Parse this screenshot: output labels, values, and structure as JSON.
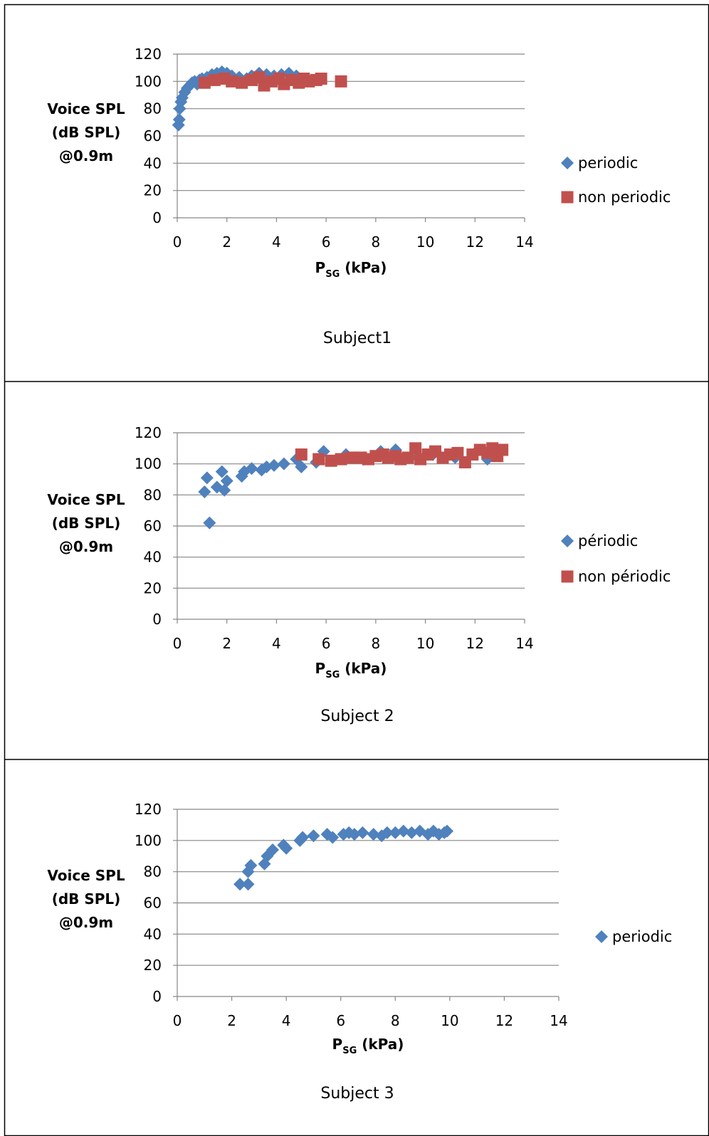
{
  "colors": {
    "periodic": "#4f81bd",
    "non_periodic": "#c0504d",
    "grid": "#868686",
    "border": "#000000"
  },
  "chart_data": [
    {
      "type": "scatter",
      "subject": "Subject1",
      "ylabel": [
        "Voice SPL",
        "(dB SPL)",
        "@0.9m"
      ],
      "xlabel_main": "P",
      "xlabel_sub": "SG",
      "xlabel_unit": " (kPa)",
      "xlim": [
        0,
        14
      ],
      "ylim": [
        0,
        120
      ],
      "xticks": [
        "0",
        "2",
        "4",
        "6",
        "8",
        "10",
        "12",
        "14"
      ],
      "yticks": [
        "0",
        "20",
        "40",
        "60",
        "80",
        "100",
        "120"
      ],
      "grid": true,
      "legend_position": "right",
      "series": [
        {
          "name": "periodic",
          "marker": "diamond",
          "color": "#4f81bd",
          "points": [
            [
              0.05,
              68
            ],
            [
              0.08,
              72
            ],
            [
              0.1,
              80
            ],
            [
              0.15,
              85
            ],
            [
              0.2,
              88
            ],
            [
              0.3,
              92
            ],
            [
              0.4,
              95
            ],
            [
              0.5,
              97
            ],
            [
              0.6,
              99
            ],
            [
              0.7,
              100
            ],
            [
              0.8,
              98
            ],
            [
              0.9,
              101
            ],
            [
              1.0,
              102
            ],
            [
              1.2,
              103
            ],
            [
              1.4,
              105
            ],
            [
              1.6,
              106
            ],
            [
              1.8,
              107
            ],
            [
              2.0,
              106
            ],
            [
              2.2,
              104
            ],
            [
              2.5,
              103
            ],
            [
              2.8,
              102
            ],
            [
              3.0,
              104
            ],
            [
              3.3,
              106
            ],
            [
              3.6,
              105
            ],
            [
              3.9,
              104
            ],
            [
              4.2,
              105
            ],
            [
              4.5,
              106
            ],
            [
              4.8,
              104
            ]
          ]
        },
        {
          "name": "non periodic",
          "marker": "square",
          "color": "#c0504d",
          "points": [
            [
              1.1,
              99
            ],
            [
              1.5,
              101
            ],
            [
              1.9,
              102
            ],
            [
              2.2,
              100
            ],
            [
              2.6,
              99
            ],
            [
              3.0,
              101
            ],
            [
              3.3,
              103
            ],
            [
              3.5,
              97
            ],
            [
              3.8,
              100
            ],
            [
              4.1,
              102
            ],
            [
              4.3,
              98
            ],
            [
              4.6,
              101
            ],
            [
              4.9,
              99
            ],
            [
              5.1,
              102
            ],
            [
              5.3,
              100
            ],
            [
              5.6,
              101
            ],
            [
              5.8,
              102
            ],
            [
              6.6,
              100
            ]
          ]
        }
      ]
    },
    {
      "type": "scatter",
      "subject": "Subject 2",
      "ylabel": [
        "Voice SPL",
        "(dB SPL)",
        "@0.9m"
      ],
      "xlabel_main": "P",
      "xlabel_sub": "SG",
      "xlabel_unit": " (kPa)",
      "xlim": [
        0,
        14
      ],
      "ylim": [
        0,
        120
      ],
      "xticks": [
        "0",
        "2",
        "4",
        "6",
        "8",
        "10",
        "12",
        "14"
      ],
      "yticks": [
        "0",
        "20",
        "40",
        "60",
        "80",
        "100",
        "120"
      ],
      "grid": true,
      "legend_position": "right",
      "series": [
        {
          "name": "périodic",
          "marker": "diamond",
          "color": "#4f81bd",
          "points": [
            [
              1.1,
              82
            ],
            [
              1.2,
              91
            ],
            [
              1.3,
              62
            ],
            [
              1.6,
              85
            ],
            [
              1.8,
              95
            ],
            [
              1.9,
              83
            ],
            [
              2.0,
              89
            ],
            [
              2.6,
              92
            ],
            [
              2.7,
              95
            ],
            [
              3.0,
              97
            ],
            [
              3.4,
              96
            ],
            [
              3.6,
              98
            ],
            [
              3.9,
              99
            ],
            [
              4.3,
              100
            ],
            [
              4.8,
              103
            ],
            [
              5.0,
              98
            ],
            [
              5.6,
              101
            ],
            [
              5.9,
              108
            ],
            [
              6.8,
              106
            ],
            [
              7.5,
              103
            ],
            [
              8.2,
              108
            ],
            [
              8.8,
              109
            ],
            [
              9.4,
              104
            ],
            [
              10.3,
              106
            ],
            [
              11.2,
              104
            ],
            [
              12.0,
              107
            ],
            [
              12.5,
              103
            ]
          ]
        },
        {
          "name": "non périodic",
          "marker": "square",
          "color": "#c0504d",
          "points": [
            [
              5.0,
              106
            ],
            [
              5.7,
              103
            ],
            [
              6.2,
              102
            ],
            [
              6.6,
              103
            ],
            [
              7.0,
              104
            ],
            [
              7.4,
              104
            ],
            [
              7.7,
              103
            ],
            [
              8.0,
              105
            ],
            [
              8.3,
              106
            ],
            [
              8.5,
              104
            ],
            [
              8.8,
              105
            ],
            [
              9.0,
              103
            ],
            [
              9.3,
              104
            ],
            [
              9.6,
              110
            ],
            [
              9.8,
              103
            ],
            [
              10.1,
              106
            ],
            [
              10.4,
              108
            ],
            [
              10.7,
              104
            ],
            [
              11.0,
              106
            ],
            [
              11.3,
              107
            ],
            [
              11.6,
              101
            ],
            [
              11.9,
              106
            ],
            [
              12.2,
              109
            ],
            [
              12.5,
              107
            ],
            [
              12.7,
              110
            ],
            [
              12.9,
              105
            ],
            [
              13.1,
              109
            ]
          ]
        }
      ]
    },
    {
      "type": "scatter",
      "subject": "Subject 3",
      "ylabel": [
        "Voice SPL",
        "(dB SPL)",
        "@0.9m"
      ],
      "xlabel_main": "P",
      "xlabel_sub": "SG",
      "xlabel_unit": " (kPa)",
      "xlim": [
        0,
        14
      ],
      "ylim": [
        0,
        120
      ],
      "xticks": [
        "0",
        "2",
        "4",
        "6",
        "8",
        "10",
        "12",
        "14"
      ],
      "yticks": [
        "0",
        "20",
        "40",
        "60",
        "80",
        "100",
        "120"
      ],
      "grid": true,
      "legend_position": "right",
      "series": [
        {
          "name": "periodic",
          "marker": "diamond",
          "color": "#4f81bd",
          "points": [
            [
              2.3,
              72
            ],
            [
              2.6,
              72
            ],
            [
              2.6,
              80
            ],
            [
              2.7,
              84
            ],
            [
              3.2,
              85
            ],
            [
              3.3,
              90
            ],
            [
              3.5,
              94
            ],
            [
              3.9,
              97
            ],
            [
              4.0,
              95
            ],
            [
              4.5,
              100
            ],
            [
              4.6,
              102
            ],
            [
              5.0,
              103
            ],
            [
              5.5,
              104
            ],
            [
              5.7,
              102
            ],
            [
              6.1,
              104
            ],
            [
              6.3,
              105
            ],
            [
              6.5,
              104
            ],
            [
              6.8,
              105
            ],
            [
              7.2,
              104
            ],
            [
              7.5,
              103
            ],
            [
              7.7,
              105
            ],
            [
              8.0,
              105
            ],
            [
              8.3,
              106
            ],
            [
              8.6,
              105
            ],
            [
              8.9,
              106
            ],
            [
              9.2,
              104
            ],
            [
              9.4,
              106
            ],
            [
              9.6,
              104
            ],
            [
              9.8,
              105
            ],
            [
              9.9,
              106
            ]
          ]
        }
      ]
    }
  ]
}
